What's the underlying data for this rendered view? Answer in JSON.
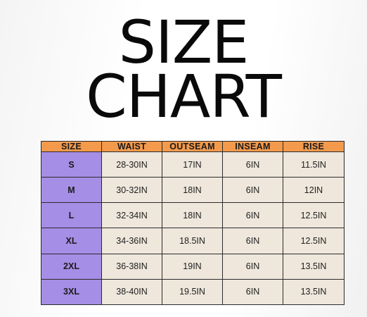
{
  "title": {
    "line1": "SIZE",
    "line2": "CHART"
  },
  "table": {
    "headers": [
      "SIZE",
      "WAIST",
      "OUTSEAM",
      "INSEAM",
      "RISE"
    ],
    "rows": [
      [
        "S",
        "28-30IN",
        "17IN",
        "6IN",
        "11.5IN"
      ],
      [
        "M",
        "30-32IN",
        "18IN",
        "6IN",
        "12IN"
      ],
      [
        "L",
        "32-34IN",
        "18IN",
        "6IN",
        "12.5IN"
      ],
      [
        "XL",
        "34-36IN",
        "18.5IN",
        "6IN",
        "12.5IN"
      ],
      [
        "2XL",
        "36-38IN",
        "19IN",
        "6IN",
        "13.5IN"
      ],
      [
        "3XL",
        "38-40IN",
        "19.5IN",
        "6IN",
        "13.5IN"
      ]
    ]
  },
  "colors": {
    "header_bg": "#f49a4c",
    "size_col_bg": "#a58ee6",
    "cell_bg": "#efe7dc",
    "border": "#2b2b2b",
    "title": "#0a0a0a"
  }
}
